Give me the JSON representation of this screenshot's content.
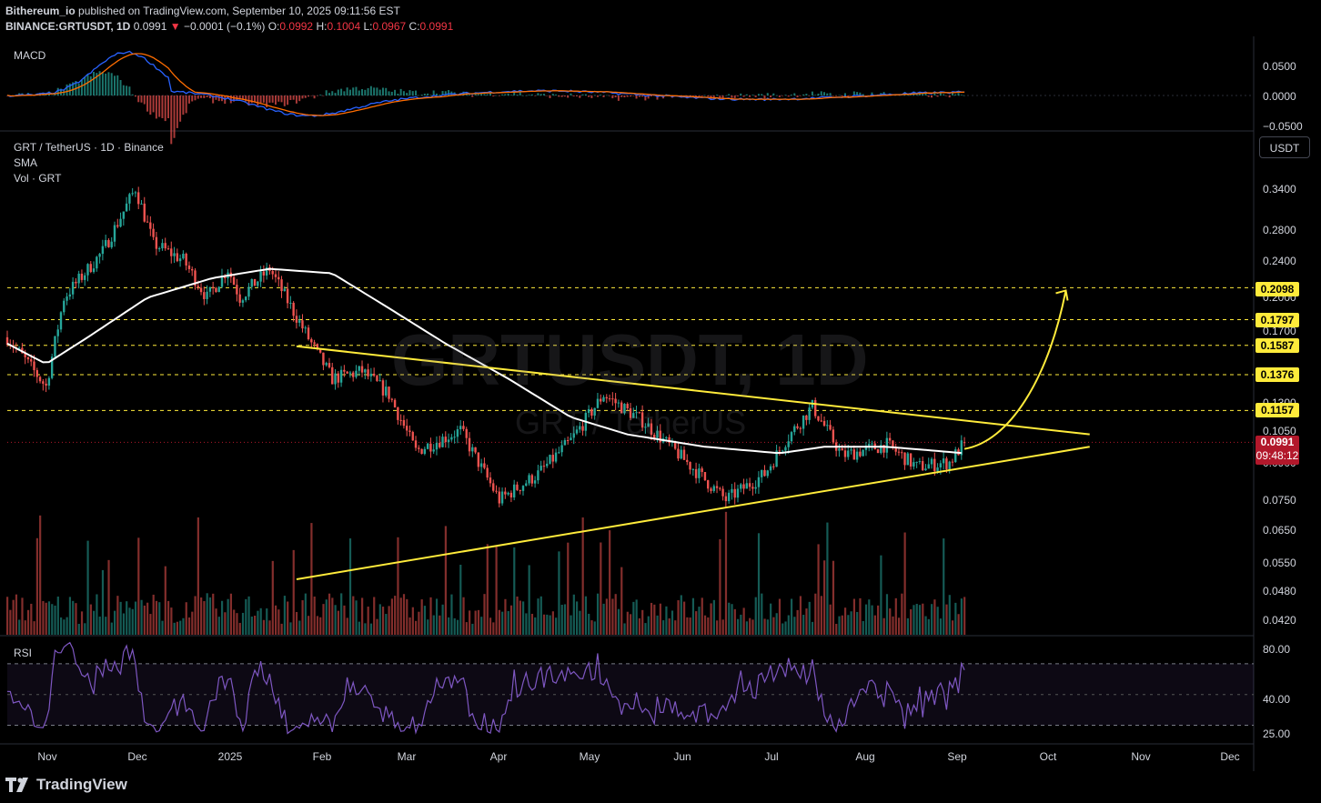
{
  "header": {
    "publisher": "Bithereum_io",
    "published_text": "published on TradingView.com, September 10, 2025 09:11:56 EST",
    "symbol": "BINANCE:GRTUSDT, 1D",
    "last": "0.0991",
    "change": "−0.0001 (−0.1%)",
    "o_label": "O:",
    "o": "0.0992",
    "h_label": "H:",
    "h": "0.1004",
    "l_label": "L:",
    "l": "0.0967",
    "c_label": "C:",
    "c": "0.0991"
  },
  "panes": {
    "macd_label": "MACD",
    "main_title": "GRT / TetherUS · 1D · Binance",
    "sma_label": "SMA",
    "vol_label": "Vol · GRT",
    "rsi_label": "RSI",
    "currency_button": "USDT"
  },
  "watermark": {
    "line1": "GRTUSDT, 1D",
    "line2": "GRT / TetherUS"
  },
  "macd_axis": [
    "0.0500",
    "0.0000",
    "−0.0500"
  ],
  "price_axis": [
    "0.3400",
    "0.2800",
    "0.2400",
    "0.2000",
    "0.1700",
    "0.1300",
    "0.1050",
    "0.0900",
    "0.0750",
    "0.0650",
    "0.0550",
    "0.0480",
    "0.0420"
  ],
  "rsi_axis": [
    "80.00",
    "40.00",
    "25.00"
  ],
  "levels": [
    "0.2098",
    "0.1797",
    "0.1587",
    "0.1376",
    "0.1157"
  ],
  "current": {
    "price": "0.0991",
    "countdown": "09:48:12"
  },
  "x_axis": [
    "Nov",
    "Dec",
    "2025",
    "Feb",
    "Mar",
    "Apr",
    "May",
    "Jun",
    "Jul",
    "Aug",
    "Sep",
    "Oct",
    "Nov",
    "Dec"
  ],
  "colors": {
    "up": "#26a69a",
    "down": "#ef5350",
    "sma": "#ffffff",
    "trend": "#ffeb3b",
    "macd": "#2962ff",
    "signal": "#ff6d00",
    "rsi": "#7e57c2"
  },
  "footer": {
    "brand": "TradingView"
  },
  "chart_data": {
    "type": "candlestick",
    "title": "GRT / TetherUS · 1D · Binance",
    "scale": "log",
    "y_range": [
      0.039,
      0.37
    ],
    "date_range": [
      "2024-10-24",
      "2025-09-10"
    ],
    "close_path": [
      [
        "2024-10-24",
        0.165
      ],
      [
        "2024-11-06",
        0.13
      ],
      [
        "2024-11-12",
        0.2
      ],
      [
        "2024-11-25",
        0.25
      ],
      [
        "2024-12-06",
        0.34
      ],
      [
        "2024-12-12",
        0.26
      ],
      [
        "2024-12-22",
        0.24
      ],
      [
        "2024-12-30",
        0.2
      ],
      [
        "2025-01-06",
        0.23
      ],
      [
        "2025-01-10",
        0.2
      ],
      [
        "2025-01-20",
        0.23
      ],
      [
        "2025-02-03",
        0.16
      ],
      [
        "2025-02-10",
        0.135
      ],
      [
        "2025-02-20",
        0.14
      ],
      [
        "2025-03-01",
        0.125
      ],
      [
        "2025-03-10",
        0.095
      ],
      [
        "2025-03-25",
        0.105
      ],
      [
        "2025-04-07",
        0.075
      ],
      [
        "2025-04-20",
        0.085
      ],
      [
        "2025-05-01",
        0.1
      ],
      [
        "2025-05-12",
        0.125
      ],
      [
        "2025-05-25",
        0.11
      ],
      [
        "2025-06-05",
        0.095
      ],
      [
        "2025-06-22",
        0.075
      ],
      [
        "2025-07-05",
        0.085
      ],
      [
        "2025-07-12",
        0.1
      ],
      [
        "2025-07-21",
        0.118
      ],
      [
        "2025-07-31",
        0.093
      ],
      [
        "2025-08-15",
        0.098
      ],
      [
        "2025-08-25",
        0.088
      ],
      [
        "2025-09-05",
        0.09
      ],
      [
        "2025-09-10",
        0.0991
      ]
    ],
    "sma_path": [
      [
        "2024-10-24",
        0.16
      ],
      [
        "2024-11-06",
        0.145
      ],
      [
        "2024-11-20",
        0.165
      ],
      [
        "2024-12-10",
        0.2
      ],
      [
        "2025-01-01",
        0.22
      ],
      [
        "2025-01-20",
        0.23
      ],
      [
        "2025-02-10",
        0.225
      ],
      [
        "2025-03-01",
        0.19
      ],
      [
        "2025-03-20",
        0.16
      ],
      [
        "2025-04-10",
        0.135
      ],
      [
        "2025-05-01",
        0.112
      ],
      [
        "2025-05-20",
        0.103
      ],
      [
        "2025-06-15",
        0.097
      ],
      [
        "2025-07-10",
        0.094
      ],
      [
        "2025-07-25",
        0.097
      ],
      [
        "2025-08-15",
        0.097
      ],
      [
        "2025-09-10",
        0.094
      ]
    ],
    "resistance_line": [
      [
        "2025-01-29",
        0.158
      ],
      [
        "2025-10-22",
        0.103
      ]
    ],
    "support_line": [
      [
        "2025-01-29",
        0.051
      ],
      [
        "2025-10-22",
        0.097
      ]
    ],
    "projection_arrow": [
      [
        "2025-09-10",
        0.096
      ],
      [
        "2025-09-25",
        0.105
      ],
      [
        "2025-10-08",
        0.16
      ],
      [
        "2025-10-14",
        0.207
      ]
    ],
    "horizontal_levels": [
      0.2098,
      0.1797,
      0.1587,
      0.1376,
      0.1157
    ],
    "current_price": 0.0991,
    "macd_range": [
      -0.07,
      0.07
    ],
    "rsi_range": [
      20,
      85
    ],
    "rsi_band": [
      30,
      70
    ]
  }
}
